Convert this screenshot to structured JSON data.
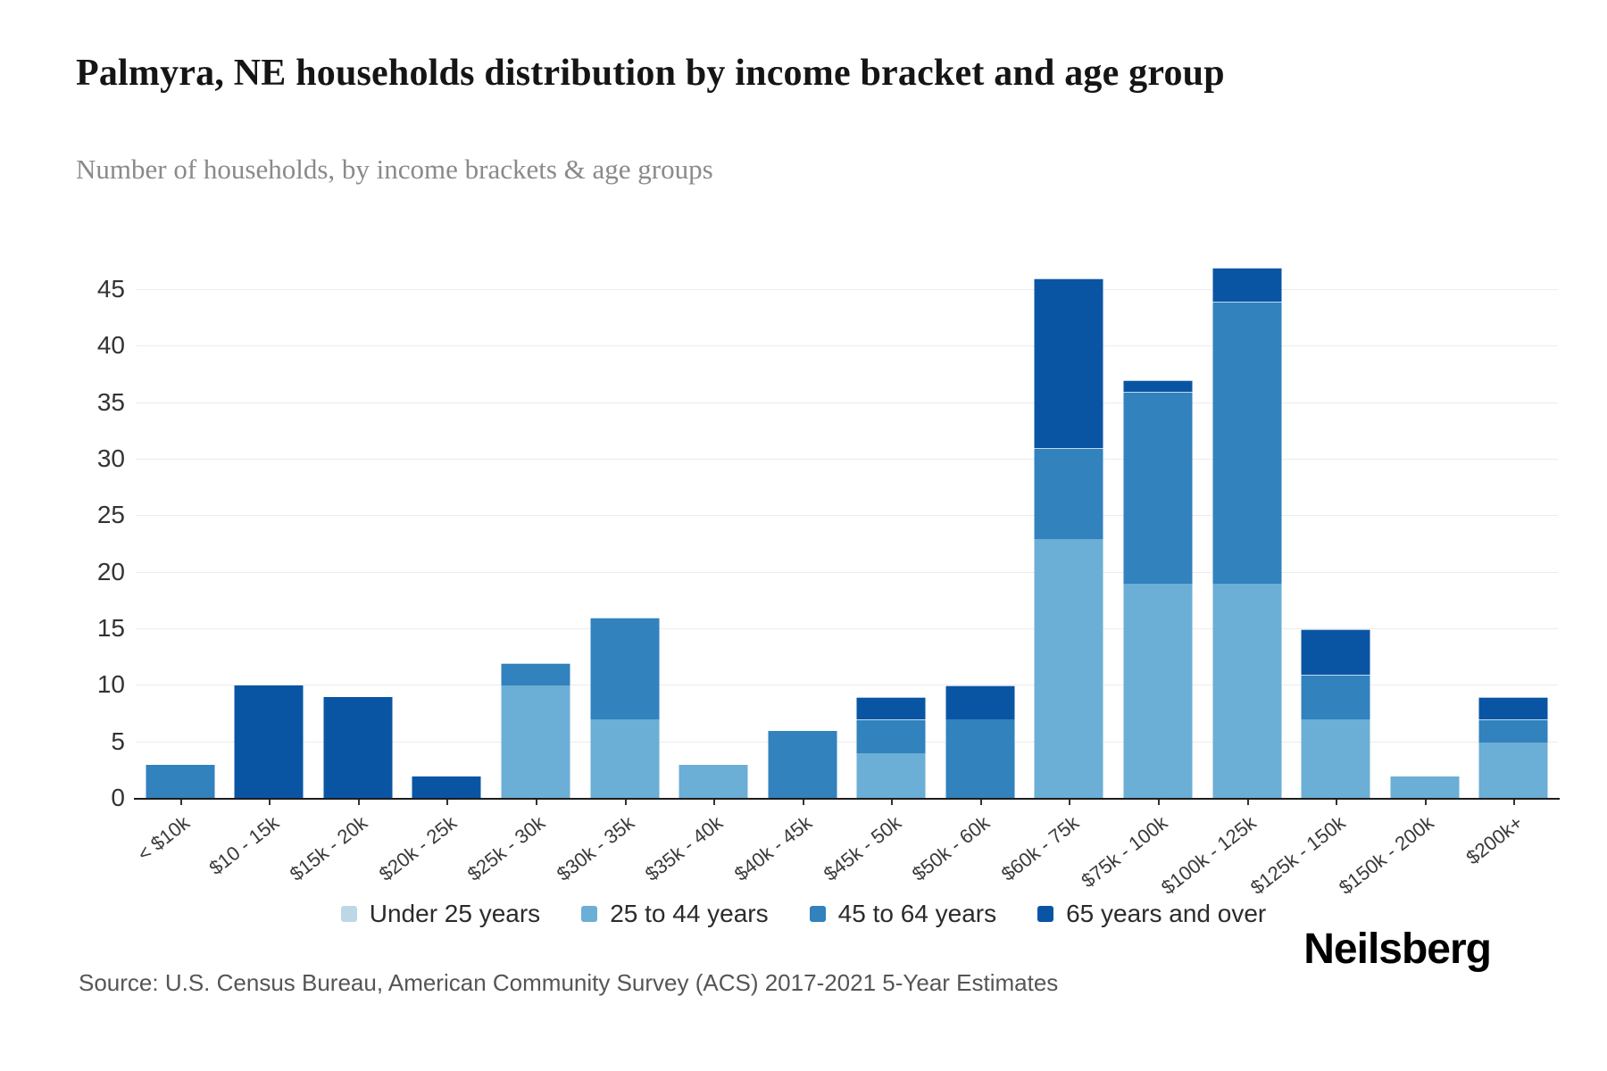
{
  "header": {
    "title": "Palmyra, NE households distribution by income bracket and age group",
    "subtitle": "Number of households, by income brackets & age groups"
  },
  "footer": {
    "source": "Source: U.S. Census Bureau, American Community Survey (ACS) 2017-2021 5-Year Estimates",
    "logo": "Neilsberg"
  },
  "chart_data": {
    "type": "bar",
    "stacked": true,
    "title": "Palmyra, NE households distribution by income bracket and age group",
    "xlabel": "",
    "ylabel": "Number of households",
    "categories": [
      "< $10k",
      "$10 - 15k",
      "$15k - 20k",
      "$20k - 25k",
      "$25k - 30k",
      "$30k - 35k",
      "$35k - 40k",
      "$40k - 45k",
      "$45k - 50k",
      "$50k - 60k",
      "$60k - 75k",
      "$75k - 100k",
      "$100k - 125k",
      "$125k - 150k",
      "$150k - 200k",
      "$200k+"
    ],
    "series": [
      {
        "name": "Under 25 years",
        "color": "#bdd7e7",
        "values": [
          0,
          0,
          0,
          0,
          0,
          0,
          0,
          0,
          0,
          0,
          0,
          0,
          0,
          0,
          0,
          0
        ]
      },
      {
        "name": "25 to 44 years",
        "color": "#6baed6",
        "values": [
          0,
          0,
          0,
          0,
          10,
          7,
          3,
          0,
          4,
          0,
          23,
          19,
          19,
          7,
          2,
          5
        ]
      },
      {
        "name": "45 to 64 years",
        "color": "#3182bd",
        "values": [
          3,
          0,
          0,
          0,
          2,
          9,
          0,
          6,
          3,
          7,
          8,
          17,
          25,
          4,
          0,
          2
        ]
      },
      {
        "name": "65 years and over",
        "color": "#0a55a3",
        "values": [
          0,
          10,
          9,
          2,
          0,
          0,
          0,
          0,
          2,
          3,
          15,
          1,
          3,
          4,
          0,
          2
        ]
      }
    ],
    "totals": [
      3,
      10,
      9,
      2,
      12,
      16,
      3,
      6,
      9,
      10,
      46,
      37,
      47,
      15,
      2,
      9
    ],
    "yticks": [
      0,
      5,
      10,
      15,
      20,
      25,
      30,
      35,
      40,
      45
    ],
    "ylim": [
      0,
      49
    ],
    "grid": true,
    "legend_position": "bottom"
  },
  "colors": {
    "axis_line": "#1c1c1c",
    "grid_line": "#ececec",
    "tick_label": "#333333"
  }
}
